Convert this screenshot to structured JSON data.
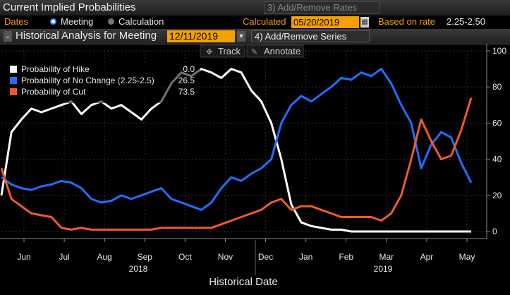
{
  "header": {
    "title": "Current Implied Probabilities",
    "rates_button": "3) Add/Remove Rates"
  },
  "controls": {
    "dates_label": "Dates",
    "meeting_label": "Meeting",
    "calculation_label": "Calculation",
    "calculated_label": "Calculated",
    "calculated_value": "05/20/2019",
    "based_on_rate_label": "Based on rate",
    "based_on_rate_value": "2.25-2.50"
  },
  "analysis": {
    "title": "Historical Analysis for Meeting",
    "meeting_value": "12/11/2019",
    "series_button": "4) Add/Remove Series"
  },
  "toolbar": {
    "track_label": "Track",
    "annotate_label": "Annotate"
  },
  "legend": [
    {
      "label": "Probability of Hike",
      "value": "0.0",
      "color": "#ffffff"
    },
    {
      "label": "Probability of No Change (2.25-2.5)",
      "value": "26.5",
      "color": "#1f6fff"
    },
    {
      "label": "Probability of Cut",
      "value": "73.5",
      "color": "#f05a28"
    }
  ],
  "chart_data": {
    "type": "line",
    "xlabel": "Historical Date",
    "ylabel": "",
    "ylim": [
      0,
      100
    ],
    "yticks": [
      0,
      20,
      40,
      60,
      80,
      100
    ],
    "x_ticks": [
      "Jun",
      "Jul",
      "Aug",
      "Sep",
      "Oct",
      "Nov",
      "Dec",
      "Jan",
      "Feb",
      "Mar",
      "Apr",
      "May"
    ],
    "x_year_labels": [
      "2018",
      "2019"
    ],
    "series": [
      {
        "name": "Probability of Hike",
        "color": "#ffffff",
        "values": [
          20,
          55,
          62,
          68,
          66,
          68,
          70,
          72,
          65,
          70,
          72,
          68,
          70,
          66,
          62,
          68,
          72,
          82,
          88,
          86,
          90,
          88,
          85,
          90,
          88,
          78,
          72,
          60,
          40,
          15,
          5,
          3,
          2,
          1,
          1,
          0,
          0,
          0,
          0,
          0,
          0,
          0,
          0,
          0,
          0,
          0,
          0,
          0
        ]
      },
      {
        "name": "Probability of No Change (2.25-2.5)",
        "color": "#1f6fff",
        "values": [
          30,
          26,
          24,
          23,
          25,
          26,
          28,
          27,
          24,
          18,
          16,
          17,
          20,
          18,
          20,
          22,
          24,
          18,
          16,
          14,
          12,
          16,
          24,
          30,
          28,
          32,
          35,
          40,
          60,
          70,
          75,
          72,
          76,
          80,
          85,
          84,
          88,
          86,
          90,
          82,
          70,
          60,
          35,
          48,
          55,
          52,
          38,
          27
        ]
      },
      {
        "name": "Probability of Cut",
        "color": "#f05a28",
        "values": [
          35,
          18,
          14,
          10,
          9,
          8,
          2,
          1,
          2,
          1,
          1,
          1,
          1,
          1,
          1,
          1,
          2,
          2,
          2,
          2,
          2,
          2,
          4,
          6,
          8,
          10,
          12,
          16,
          18,
          12,
          14,
          14,
          12,
          10,
          8,
          8,
          8,
          8,
          6,
          10,
          20,
          40,
          62,
          50,
          40,
          42,
          56,
          74
        ]
      }
    ]
  }
}
